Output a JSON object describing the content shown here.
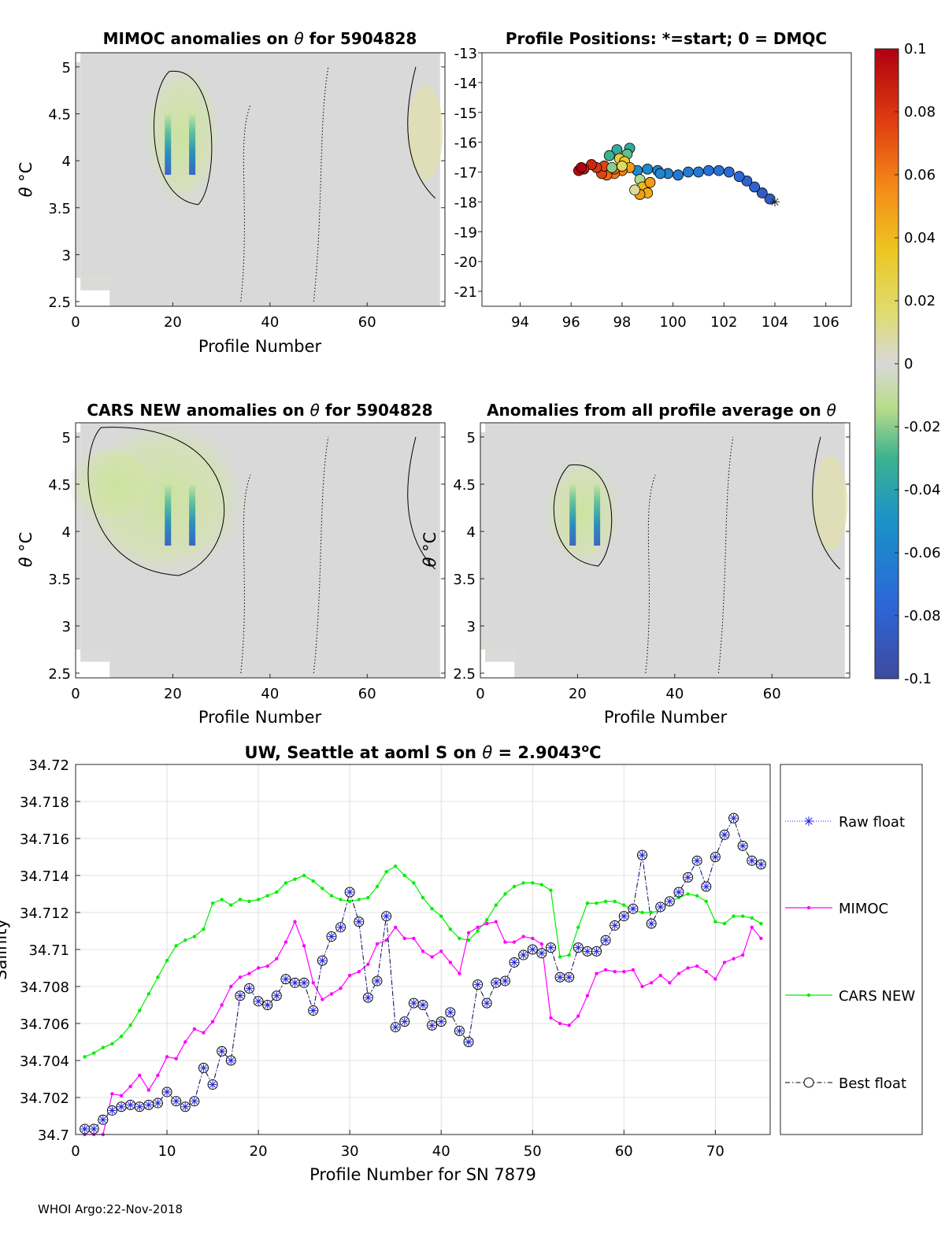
{
  "footer": "WHOI Argo:22-Nov-2018",
  "chart_data": [
    {
      "id": "mimoc",
      "type": "heatmap",
      "title_prefix": "MIMOC anomalies on ",
      "title_suffix": " for 5904828",
      "theta": "θ",
      "xlabel": "Profile Number",
      "ylabel": "θ ",
      "ylabel_unit": "°C",
      "xlim": [
        0,
        76
      ],
      "ylim": [
        2.45,
        5.15
      ],
      "xticks": [
        0,
        20,
        40,
        60
      ],
      "yticks": [
        2.5,
        3,
        3.5,
        4,
        4.5,
        5
      ],
      "yticklabels": [
        "2.5",
        "3",
        "3.5",
        "4",
        "4.5",
        "5"
      ],
      "blue_columns": [
        19,
        24
      ],
      "green_blob": {
        "x": [
          16,
          28
        ],
        "y": [
          3.6,
          4.95
        ]
      }
    },
    {
      "id": "positions",
      "type": "scatter",
      "title": "Profile Positions: *=start; 0 = DMQC",
      "xlim": [
        92.5,
        107
      ],
      "ylim": [
        -21.5,
        -13
      ],
      "xticks": [
        94,
        96,
        98,
        100,
        102,
        104,
        106
      ],
      "yticks": [
        -21,
        -20,
        -19,
        -18,
        -17,
        -16,
        -15,
        -14,
        -13
      ],
      "start": [
        104,
        -18
      ],
      "points": [
        [
          103.8,
          -17.9,
          -0.085
        ],
        [
          103.5,
          -17.7,
          -0.085
        ],
        [
          103.2,
          -17.5,
          -0.08
        ],
        [
          102.9,
          -17.3,
          -0.08
        ],
        [
          102.6,
          -17.15,
          -0.075
        ],
        [
          102.2,
          -17.0,
          -0.075
        ],
        [
          101.8,
          -16.95,
          -0.07
        ],
        [
          101.4,
          -16.95,
          -0.07
        ],
        [
          101.0,
          -17.0,
          -0.065
        ],
        [
          100.6,
          -17.0,
          -0.065
        ],
        [
          100.2,
          -17.1,
          -0.065
        ],
        [
          99.8,
          -17.05,
          -0.06
        ],
        [
          99.4,
          -16.95,
          -0.06
        ],
        [
          99.0,
          -16.9,
          -0.055
        ],
        [
          98.6,
          -16.95,
          -0.055
        ],
        [
          98.3,
          -16.2,
          -0.035
        ],
        [
          97.8,
          -16.25,
          -0.035
        ],
        [
          97.5,
          -16.45,
          -0.03
        ],
        [
          98.2,
          -16.4,
          -0.025
        ],
        [
          97.9,
          -16.55,
          0.03
        ],
        [
          98.1,
          -16.65,
          0.035
        ],
        [
          98.3,
          -16.85,
          0.05
        ],
        [
          98.0,
          -16.95,
          0.06
        ],
        [
          97.7,
          -17.05,
          0.06
        ],
        [
          97.4,
          -17.1,
          0.065
        ],
        [
          97.2,
          -17.05,
          0.075
        ],
        [
          98.7,
          -17.25,
          -0.015
        ],
        [
          98.8,
          -17.5,
          0.04
        ],
        [
          99.0,
          -17.7,
          0.045
        ],
        [
          98.7,
          -17.75,
          0.05
        ],
        [
          99.1,
          -17.35,
          0.05
        ],
        [
          98.5,
          -17.6,
          0.01
        ],
        [
          97.7,
          -16.9,
          0.065
        ],
        [
          97.3,
          -16.8,
          0.075
        ],
        [
          97.0,
          -16.85,
          0.08
        ],
        [
          96.8,
          -16.75,
          0.085
        ],
        [
          96.5,
          -16.9,
          0.09
        ],
        [
          96.3,
          -16.95,
          0.095
        ],
        [
          96.4,
          -16.85,
          0.1
        ],
        [
          97.6,
          -16.85,
          -0.02
        ],
        [
          98.0,
          -16.8,
          0.02
        ],
        [
          99.5,
          -17.05,
          -0.058
        ]
      ]
    },
    {
      "id": "cars",
      "type": "heatmap",
      "title_prefix": "CARS NEW anomalies on ",
      "title_suffix": " for 5904828",
      "theta": "θ",
      "xlabel": "Profile Number",
      "ylabel": "θ ",
      "ylabel_unit": "°C",
      "xlim": [
        0,
        76
      ],
      "ylim": [
        2.45,
        5.15
      ],
      "xticks": [
        0,
        20,
        40,
        60
      ],
      "yticks": [
        2.5,
        3,
        3.5,
        4,
        4.5,
        5
      ],
      "yticklabels": [
        "2.5",
        "3",
        "3.5",
        "4",
        "4.5",
        "5"
      ],
      "blue_columns": [
        19,
        24
      ],
      "green_blob": {
        "x": [
          2,
          34
        ],
        "y": [
          3.6,
          5.1
        ]
      }
    },
    {
      "id": "allavg",
      "type": "heatmap",
      "title_prefix": "Anomalies from all profile average on ",
      "title_suffix": "",
      "theta": "θ",
      "xlabel": "Profile Number",
      "ylabel": "θ ",
      "ylabel_unit": "°C",
      "xlim": [
        0,
        76
      ],
      "ylim": [
        2.45,
        5.15
      ],
      "xticks": [
        0,
        20,
        40,
        60
      ],
      "yticks": [
        2.5,
        3,
        3.5,
        4,
        4.5,
        5
      ],
      "yticklabels": [
        "2.5",
        "3",
        "3.5",
        "4",
        "4.5",
        "5"
      ],
      "blue_columns": [
        19,
        24
      ],
      "green_blob": {
        "x": [
          15,
          27
        ],
        "y": [
          3.7,
          4.7
        ]
      }
    },
    {
      "id": "colorbar",
      "type": "colorbar",
      "range": [
        -0.1,
        0.1
      ],
      "ticks": [
        0.1,
        0.08,
        0.06,
        0.04,
        0.02,
        0,
        -0.02,
        -0.04,
        -0.06,
        -0.08,
        -0.1
      ],
      "ticklabels": [
        "0.1",
        "0.08",
        "0.06",
        "0.04",
        "0.02",
        "0",
        "-0.02",
        "-0.04",
        "-0.06",
        "-0.08",
        "-0.1"
      ]
    },
    {
      "id": "salinity",
      "type": "line",
      "title_prefix": "UW, Seattle at aoml S on ",
      "theta": "θ",
      "title_value": " = 2.9043",
      "title_unit_sup": "o",
      "title_unit": "C",
      "xlabel": "Profile Number for SN 7879",
      "ylabel": "Salinity",
      "xlim": [
        0,
        76
      ],
      "ylim": [
        34.7,
        34.72
      ],
      "xticks": [
        0,
        10,
        20,
        30,
        40,
        50,
        60,
        70
      ],
      "yticks": [
        34.7,
        34.702,
        34.704,
        34.706,
        34.708,
        34.71,
        34.712,
        34.714,
        34.716,
        34.718,
        34.72
      ],
      "yticklabels": [
        "34.7",
        "34.702",
        "34.704",
        "34.706",
        "34.708",
        "34.71",
        "34.712",
        "34.714",
        "34.716",
        "34.718",
        "34.72"
      ],
      "legend": [
        "Raw float",
        "MIMOC",
        "CARS NEW",
        "Best float"
      ],
      "x": [
        1,
        2,
        3,
        4,
        5,
        6,
        7,
        8,
        9,
        10,
        11,
        12,
        13,
        14,
        15,
        16,
        17,
        18,
        19,
        20,
        21,
        22,
        23,
        24,
        25,
        26,
        27,
        28,
        29,
        30,
        31,
        32,
        33,
        34,
        35,
        36,
        37,
        38,
        39,
        40,
        41,
        42,
        43,
        44,
        45,
        46,
        47,
        48,
        49,
        50,
        51,
        52,
        53,
        54,
        55,
        56,
        57,
        58,
        59,
        60,
        61,
        62,
        63,
        64,
        65,
        66,
        67,
        68,
        69,
        70,
        71,
        72,
        73,
        74,
        75
      ],
      "series": [
        {
          "name": "Raw float",
          "values": [
            34.7003,
            34.7003,
            34.7008,
            34.7013,
            34.7015,
            34.7016,
            34.7015,
            34.7016,
            34.7017,
            34.7023,
            34.7018,
            34.7015,
            34.7018,
            34.7036,
            34.7027,
            34.7045,
            34.704,
            34.7075,
            34.7079,
            34.7072,
            34.707,
            34.7075,
            34.7084,
            34.7082,
            34.7082,
            34.7067,
            34.7094,
            34.7107,
            34.7112,
            34.7131,
            34.7115,
            34.7074,
            34.7083,
            34.7118,
            34.7058,
            34.7061,
            34.7071,
            34.707,
            34.7059,
            34.7061,
            34.7066,
            34.7056,
            34.705,
            34.7081,
            34.7071,
            34.7082,
            34.7083,
            34.7093,
            34.7097,
            34.71,
            34.7098,
            34.7101,
            34.7085,
            34.7085,
            34.7101,
            34.7099,
            34.7099,
            34.7105,
            34.7113,
            34.7118,
            34.7122,
            34.7151,
            34.7114,
            34.7123,
            34.7126,
            34.7131,
            34.7139,
            34.7148,
            34.7134,
            34.715,
            34.7162,
            34.7171,
            34.7156,
            34.7148,
            34.7146
          ]
        },
        {
          "name": "MIMOC",
          "values": [
            34.7,
            34.7,
            34.7,
            34.7022,
            34.7021,
            34.7026,
            34.7032,
            34.7024,
            34.7032,
            34.7042,
            34.7041,
            34.705,
            34.7057,
            34.7055,
            34.7061,
            34.707,
            34.708,
            34.7085,
            34.7087,
            34.709,
            34.7091,
            34.7095,
            34.7104,
            34.7115,
            34.7102,
            34.7082,
            34.7073,
            34.7076,
            34.7079,
            34.7086,
            34.7088,
            34.7092,
            34.7103,
            34.7105,
            34.7112,
            34.7106,
            34.7106,
            34.7099,
            34.7096,
            34.7099,
            34.7093,
            34.7087,
            34.7109,
            34.7112,
            34.7114,
            34.7115,
            34.7104,
            34.7104,
            34.7107,
            34.7106,
            34.7103,
            34.7063,
            34.706,
            34.7059,
            34.7064,
            34.7075,
            34.7087,
            34.7089,
            34.7088,
            34.7088,
            34.7089,
            34.708,
            34.7082,
            34.7086,
            34.7082,
            34.7087,
            34.709,
            34.7091,
            34.7088,
            34.7084,
            34.7093,
            34.7095,
            34.7097,
            34.7112,
            34.7106
          ]
        },
        {
          "name": "CARS NEW",
          "values": [
            34.7042,
            34.7044,
            34.7047,
            34.7049,
            34.7053,
            34.7059,
            34.7067,
            34.7076,
            34.7085,
            34.7094,
            34.7102,
            34.7105,
            34.7107,
            34.7111,
            34.7125,
            34.7127,
            34.7124,
            34.7127,
            34.7126,
            34.7127,
            34.7129,
            34.7131,
            34.7136,
            34.7138,
            34.714,
            34.7137,
            34.7133,
            34.7129,
            34.7127,
            34.7126,
            34.7127,
            34.7128,
            34.7134,
            34.7142,
            34.7145,
            34.714,
            34.7136,
            34.7128,
            34.7122,
            34.7118,
            34.7111,
            34.7106,
            34.7105,
            34.711,
            34.7116,
            34.7124,
            34.713,
            34.7134,
            34.7136,
            34.7136,
            34.7135,
            34.7132,
            34.7096,
            34.7097,
            34.7112,
            34.7125,
            34.7125,
            34.7126,
            34.7126,
            34.7124,
            34.7121,
            34.712,
            34.712,
            34.7121,
            34.7126,
            34.7128,
            34.713,
            34.7129,
            34.7126,
            34.7115,
            34.7114,
            34.7118,
            34.7118,
            34.7117,
            34.7114
          ]
        }
      ]
    }
  ]
}
